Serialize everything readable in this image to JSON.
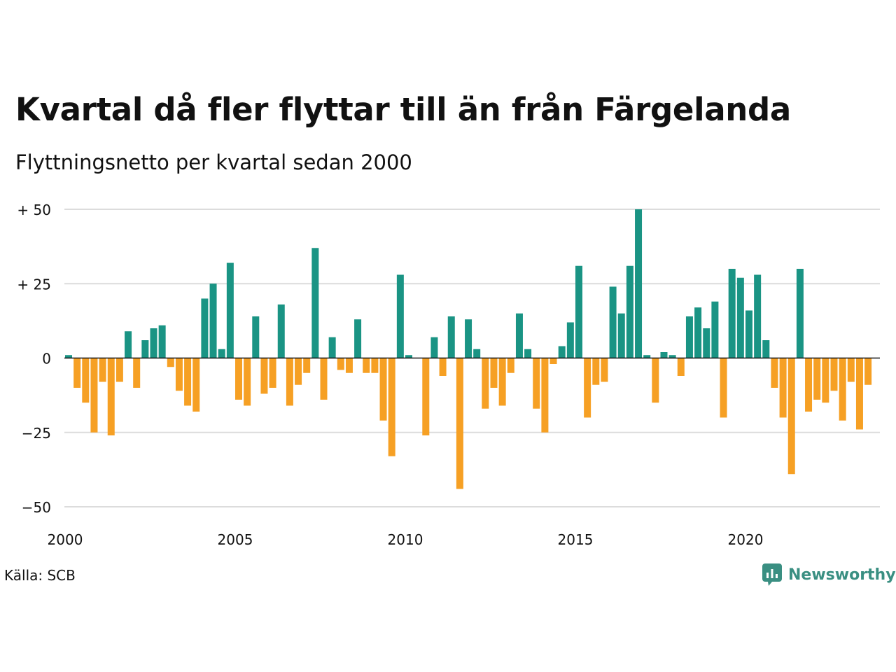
{
  "header": {
    "title": "Kvartal då fler flyttar till än från Färgelanda",
    "subtitle": "Flyttningsnetto per kvartal sedan 2000"
  },
  "footer": {
    "source": "Källa: SCB",
    "brand": "Newsworthy",
    "brand_icon": "newsworthy-logo-icon"
  },
  "colors": {
    "positive": "#1a9484",
    "negative": "#f6a024",
    "gridline": "#dcdcdc",
    "zero_line": "#111111",
    "brand": "#3a8f82"
  },
  "chart_data": {
    "type": "bar",
    "title": "Kvartal då fler flyttar till än från Färgelanda",
    "subtitle": "Flyttningsnetto per kvartal sedan 2000",
    "x_start": "2000 Q1",
    "x_ticks": [
      "2000",
      "2005",
      "2010",
      "2015",
      "2020"
    ],
    "y_ticks": [
      50,
      25,
      0,
      -25,
      -50
    ],
    "y_tick_labels": [
      "+ 50",
      "+ 25",
      "0",
      "−25",
      "−50"
    ],
    "ylim": [
      -50,
      50
    ],
    "grid": true,
    "values": [
      1,
      -10,
      -15,
      -25,
      -8,
      -26,
      -8,
      9,
      -10,
      6,
      10,
      11,
      -3,
      -11,
      -16,
      -18,
      20,
      25,
      3,
      32,
      -14,
      -16,
      14,
      -12,
      -10,
      18,
      -16,
      -9,
      -5,
      37,
      -14,
      7,
      -4,
      -5,
      13,
      -5,
      -5,
      -21,
      -33,
      28,
      1,
      0,
      -26,
      7,
      -6,
      14,
      -44,
      13,
      3,
      -17,
      -10,
      -16,
      -5,
      15,
      3,
      -17,
      -25,
      -2,
      4,
      12,
      31,
      -20,
      -9,
      -8,
      24,
      15,
      31,
      50,
      1,
      -15,
      2,
      1,
      -6,
      14,
      17,
      10,
      19,
      -20,
      30,
      27,
      16,
      28,
      6,
      -10,
      -20,
      -39,
      30,
      -18,
      -14,
      -15,
      -11,
      -21,
      -8,
      -24,
      -9
    ]
  }
}
